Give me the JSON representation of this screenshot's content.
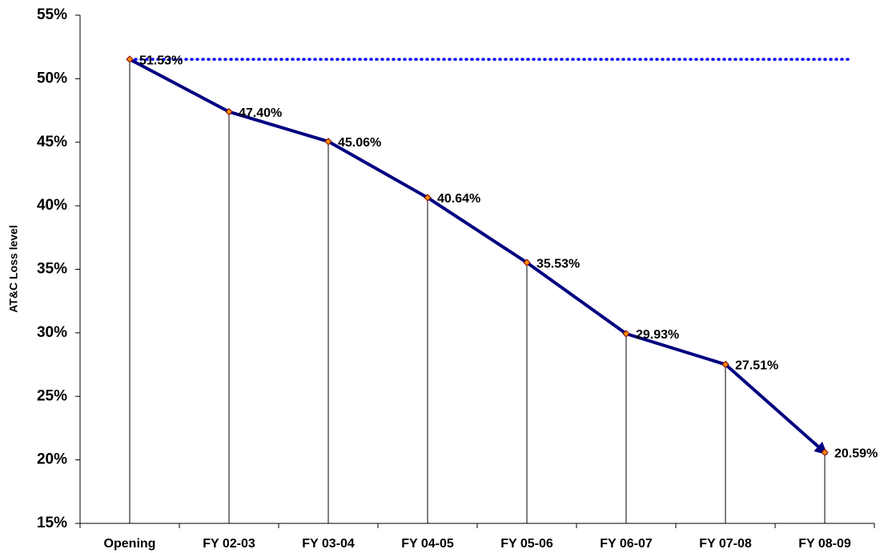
{
  "chart_data": {
    "type": "line",
    "y_label": "AT&C Loss level",
    "categories": [
      "Opening",
      "FY 02-03",
      "FY 03-04",
      "FY 04-05",
      "FY 05-06",
      "FY 06-07",
      "FY 07-08",
      "FY 08-09"
    ],
    "values": [
      51.53,
      47.4,
      45.06,
      40.64,
      35.53,
      29.93,
      27.51,
      20.59
    ],
    "value_labels": [
      "51.53%",
      "47.40%",
      "45.06%",
      "40.64%",
      "35.53%",
      "29.93%",
      "27.51%",
      "20.59%"
    ],
    "color": "#000080",
    "marker_color": "#ff8c00",
    "drop_lines": true,
    "end_arrow": true,
    "hline": {
      "value": 51.53,
      "color": "#0000ff",
      "style": "dotted"
    },
    "ylim": [
      15,
      55
    ],
    "yticks": [
      {
        "value": 15,
        "label": "15%"
      },
      {
        "value": 20,
        "label": "20%"
      },
      {
        "value": 25,
        "label": "25%"
      },
      {
        "value": 30,
        "label": "30%"
      },
      {
        "value": 35,
        "label": "35%"
      },
      {
        "value": 40,
        "label": "40%"
      },
      {
        "value": 45,
        "label": "45%"
      },
      {
        "value": 50,
        "label": "50%"
      },
      {
        "value": 55,
        "label": "55%"
      }
    ]
  }
}
